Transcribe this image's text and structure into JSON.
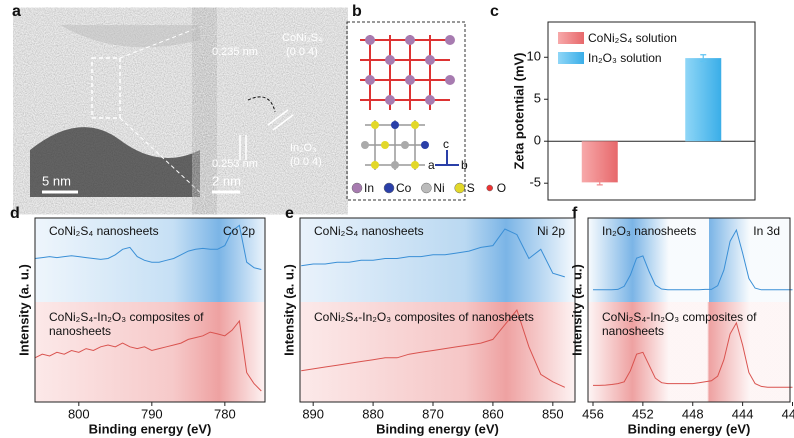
{
  "figure": {
    "panel_labels": [
      "a",
      "b",
      "c",
      "d",
      "e",
      "f"
    ]
  },
  "panel_a": {
    "scale_bars": [
      "5 nm",
      "2 nm"
    ],
    "annotations": [
      "0.235 nm",
      "CoNi₂S₄",
      "(0 0 4)",
      "0.253 nm",
      "In₂O₃",
      "(0 0 4)"
    ]
  },
  "panel_b": {
    "legend": [
      "In",
      "Co",
      "Ni",
      "S",
      "O"
    ],
    "axes": [
      "a",
      "b",
      "c"
    ]
  },
  "chart_data": [
    {
      "type": "bar",
      "ylabel": "Zeta potential (mV)",
      "categories": [
        null,
        null
      ],
      "series": [
        {
          "name": "CoNi₂S₄ solution",
          "color": "#f08a8c",
          "values": [
            -4.9,
            null
          ],
          "errors": [
            0.3,
            null
          ]
        },
        {
          "name": "In₂O₃ solution",
          "color": "#5fc3f2",
          "values": [
            null,
            9.9
          ],
          "errors": [
            null,
            0.4
          ]
        }
      ],
      "ylim": [
        -7,
        14.2
      ],
      "yticks": [
        -5,
        0,
        5,
        10
      ]
    },
    {
      "type": "line",
      "xlabel": "Binding energy (eV)",
      "ylabel": "Intensity (a. u.)",
      "annotation": "Co 2p",
      "x": [
        806,
        805,
        804,
        803,
        802,
        801,
        800,
        799,
        798,
        797,
        796,
        795,
        794,
        793,
        792,
        791,
        790,
        789,
        788,
        787,
        786,
        785,
        784,
        783,
        782,
        781,
        780,
        779,
        778,
        777,
        776,
        775
      ],
      "series": [
        {
          "name": "CoNi₂S₄ nanosheets",
          "color": "#3a8fd6",
          "values": [
            7.8,
            7.85,
            7.9,
            7.85,
            7.9,
            7.95,
            7.9,
            7.85,
            7.8,
            7.75,
            7.8,
            8.0,
            8.3,
            8.4,
            7.9,
            7.7,
            7.6,
            7.6,
            7.7,
            7.8,
            8.0,
            8.2,
            8.3,
            8.35,
            8.3,
            8.3,
            8.5,
            9.3,
            9.6,
            7.6,
            7.3,
            7.2
          ]
        },
        {
          "name": "CoNi₂S₄-In₂O₃ composites of nanosheets",
          "color": "#d9534f",
          "values": [
            2.4,
            2.6,
            2.5,
            2.7,
            2.6,
            2.8,
            2.7,
            2.9,
            2.8,
            3.0,
            3.1,
            3.0,
            3.2,
            3.0,
            2.9,
            3.0,
            2.8,
            2.9,
            3.0,
            3.1,
            3.2,
            3.4,
            3.5,
            3.6,
            3.8,
            3.7,
            3.6,
            3.9,
            4.4,
            1.6,
            1.0,
            0.6
          ]
        }
      ],
      "xlim": [
        806,
        774.5
      ],
      "xticks": [
        800,
        790,
        780
      ],
      "ylim": [
        0,
        10
      ]
    },
    {
      "type": "line",
      "xlabel": "Binding energy (eV)",
      "ylabel": "Intensity (a. u.)",
      "annotation": "Ni 2p",
      "x": [
        892,
        890,
        888,
        886,
        884,
        882,
        880,
        878,
        876,
        874,
        872,
        870,
        868,
        866,
        864,
        862,
        860,
        858,
        856,
        854,
        852,
        850,
        848
      ],
      "series": [
        {
          "name": "CoNi₂S₄ nanosheets",
          "color": "#3a8fd6",
          "values": [
            7.4,
            7.5,
            7.5,
            7.6,
            7.6,
            7.7,
            7.7,
            7.8,
            7.8,
            7.9,
            7.9,
            8.0,
            8.0,
            8.1,
            8.2,
            8.4,
            8.5,
            9.4,
            9.1,
            7.8,
            8.3,
            7.0,
            6.8
          ]
        },
        {
          "name": "CoNi₂S₄-In₂O₃ composites of nanosheets",
          "color": "#d9534f",
          "values": [
            1.7,
            1.8,
            1.9,
            2.0,
            2.1,
            2.2,
            2.3,
            2.4,
            2.4,
            2.6,
            2.7,
            2.8,
            2.9,
            3.0,
            3.1,
            3.2,
            3.4,
            4.2,
            5.0,
            3.0,
            1.5,
            1.1,
            0.8
          ]
        }
      ],
      "xlim": [
        892.2,
        846.3
      ],
      "xticks": [
        890,
        880,
        870,
        860,
        850
      ],
      "ylim": [
        0,
        10
      ]
    },
    {
      "type": "line",
      "xlabel": "Binding energy (eV)",
      "ylabel": "Intensity (a. u.)",
      "annotation": "In 3d",
      "x": [
        456,
        455.5,
        455,
        454.5,
        454,
        453.5,
        453,
        452.5,
        452,
        451.5,
        451,
        450.5,
        450,
        449.5,
        449,
        448.5,
        448,
        447.5,
        447,
        446.5,
        446,
        445.5,
        445,
        444.5,
        444,
        443.5,
        443,
        442.5,
        442,
        441.5,
        441,
        440.5,
        440
      ],
      "series": [
        {
          "name": "In₂O₃ nanosheets",
          "color": "#3a8fd6",
          "values": [
            6.1,
            6.1,
            6.1,
            6.1,
            6.12,
            6.29,
            6.9,
            7.82,
            7.94,
            7.09,
            6.36,
            6.14,
            6.1,
            6.1,
            6.1,
            6.1,
            6.1,
            6.1,
            6.12,
            6.12,
            6.32,
            7.17,
            8.74,
            9.35,
            8.1,
            6.71,
            6.19,
            6.1,
            6.1,
            6.1,
            6.1,
            6.1,
            6.1
          ]
        },
        {
          "name": "CoNi₂S₄-In₂O₃ composites of nanosheets",
          "color": "#d9534f",
          "values": [
            0.9,
            0.9,
            0.92,
            0.95,
            1.0,
            1.1,
            1.7,
            2.6,
            2.7,
            2.0,
            1.3,
            1.05,
            1.0,
            1.0,
            1.0,
            1.0,
            1.0,
            1.05,
            1.1,
            1.15,
            1.4,
            2.3,
            3.7,
            4.3,
            3.1,
            1.6,
            1.0,
            0.85,
            0.8,
            0.8,
            0.8,
            0.8,
            0.8
          ]
        }
      ],
      "xlim": [
        456.4,
        440.2
      ],
      "xticks": [
        456,
        452,
        448,
        444,
        440
      ],
      "ylim": [
        0,
        10
      ]
    }
  ]
}
